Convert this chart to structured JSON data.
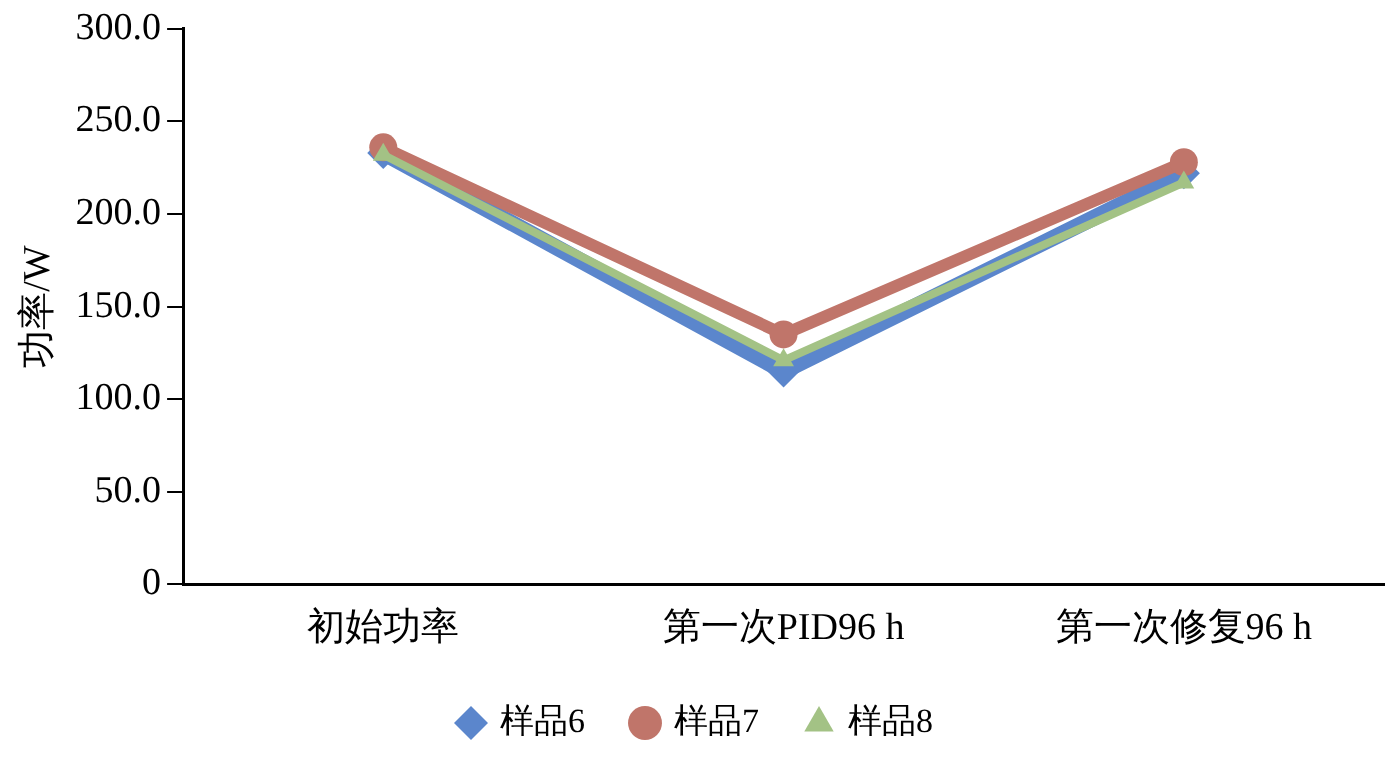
{
  "chart_data": {
    "type": "line",
    "ylabel": "功率/W",
    "categories": [
      "初始功率",
      "第一次PID96 h",
      "第一次修复96 h"
    ],
    "series": [
      {
        "name": "样品6",
        "color": "#5b86cc",
        "values": [
          233,
          115,
          222
        ],
        "marker": "diamond"
      },
      {
        "name": "样品7",
        "color": "#c0756a",
        "values": [
          236,
          135,
          228
        ],
        "marker": "circle"
      },
      {
        "name": "样品8",
        "color": "#a3c285",
        "values": [
          232,
          121,
          217
        ],
        "marker": "triangle"
      }
    ],
    "ylim": [
      0,
      300
    ],
    "yticks": [
      {
        "value": 0,
        "label": "0"
      },
      {
        "value": 50,
        "label": "50.0"
      },
      {
        "value": 100,
        "label": "100.0"
      },
      {
        "value": 150,
        "label": "150.0"
      },
      {
        "value": 200,
        "label": "200.0"
      },
      {
        "value": 250,
        "label": "250.0"
      },
      {
        "value": 300,
        "label": "300.0"
      }
    ],
    "grid": false,
    "legend": "bottom"
  }
}
